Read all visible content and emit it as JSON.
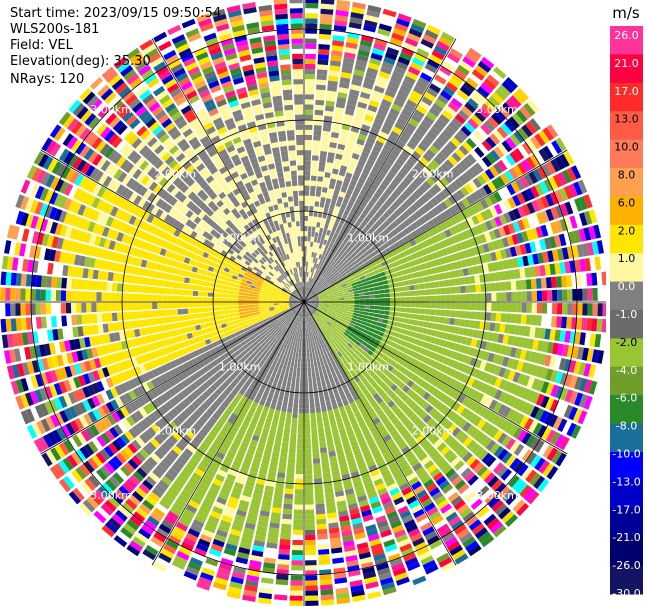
{
  "header": {
    "start_time": "Start time: 2023/09/15 09:50:54",
    "instrument": "WLS200s-181",
    "field": "Field: VEL",
    "elevation": "Elevation(deg): 35.30",
    "nrays": "NRays: 120"
  },
  "chart_data": {
    "type": "heatmap",
    "projection": "polar-ppi",
    "field": "VEL",
    "nrays": 120,
    "elevation_deg": 35.3,
    "range_rings_km": [
      1.0,
      2.0,
      3.0
    ],
    "range_ring_labels": [
      "1.00km",
      "2.00km",
      "3.00km"
    ],
    "colorbar": {
      "unit": "m/s",
      "ticks": [
        "26.0",
        "21.0",
        "17.0",
        "13.0",
        "10.0",
        "8.0",
        "6.0",
        "2.0",
        "1.0",
        "0.0",
        "-1.0",
        "-2.0",
        "-4.0",
        "-6.0",
        "-8.0",
        "-10.0",
        "-13.0",
        "-17.0",
        "-21.0",
        "-26.0",
        "-30.0"
      ],
      "colors": [
        "#ff3399",
        "#ff0040",
        "#ff2a2a",
        "#ff5a46",
        "#ff7a5a",
        "#ff9f50",
        "#ffb000",
        "#ffe600",
        "#fff8a0",
        "#808080",
        "#6b6b6b",
        "#99c433",
        "#6e9d2a",
        "#2a8a2a",
        "#1a6e9a",
        "#0000ff",
        "#0000c8",
        "#000096",
        "#00006e",
        "#141464"
      ]
    },
    "velocity_regions": [
      {
        "sector": "west",
        "description_values_ms": [
          2.0,
          6.0
        ],
        "range_km": [
          0.0,
          2.5
        ]
      },
      {
        "sector": "east",
        "description_values_ms": [
          -2.0,
          -6.0
        ],
        "range_km": [
          0.0,
          2.5
        ]
      },
      {
        "sector": "north",
        "description_values_ms": [
          0.0,
          1.0
        ],
        "range_km": [
          0.5,
          2.5
        ]
      },
      {
        "sector": "south",
        "description_values_ms": [
          -1.0,
          -2.0
        ],
        "range_km": [
          0.5,
          2.5
        ]
      },
      {
        "sector": "all",
        "description": "noise",
        "range_km": [
          2.5,
          3.3
        ]
      }
    ]
  }
}
